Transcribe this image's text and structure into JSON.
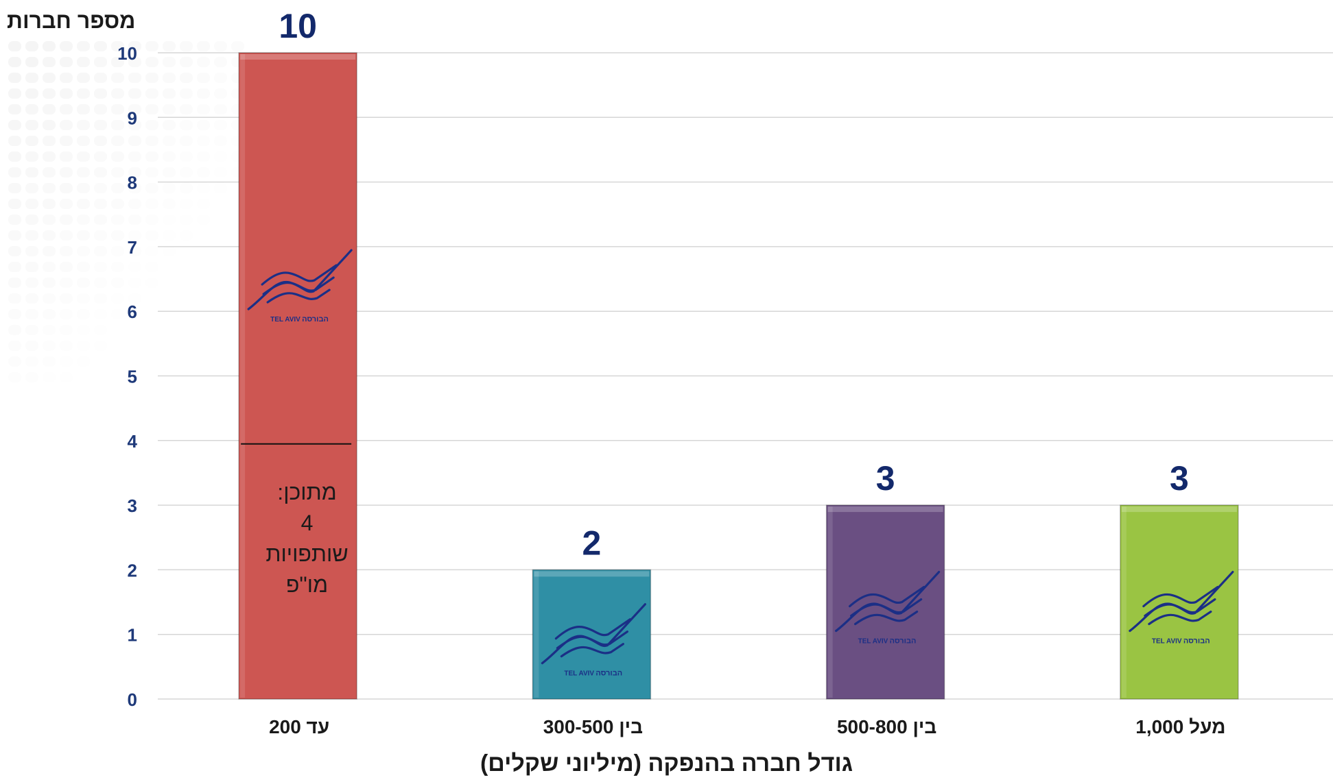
{
  "chart_data": {
    "type": "bar",
    "ylabel": "מספר חברות",
    "xlabel": "גודל חברה בהנפקה (מיליוני שקלים)",
    "categories": [
      "עד 200",
      "בין 300-500",
      "בין 500-800",
      "מעל 1,000"
    ],
    "values": [
      10,
      2,
      3,
      3
    ],
    "data_labels": [
      "10",
      "2",
      "3",
      "3"
    ],
    "ylim": [
      0,
      10
    ],
    "yticks": [
      0,
      1,
      2,
      3,
      4,
      5,
      6,
      7,
      8,
      9,
      10
    ],
    "ytick_labels": [
      "0",
      "1",
      "2",
      "3",
      "4",
      "5",
      "6",
      "7",
      "8",
      "9",
      "10"
    ],
    "grid": true,
    "legend": "none",
    "bar_colors": [
      "#cd5652",
      "#2f8fa5",
      "#6a4f82",
      "#9ac443"
    ],
    "label_color": "#13296b",
    "tick_label_color": "#1f3a7a",
    "subset_marker": {
      "category_index": 0,
      "value": 4,
      "lines": [
        "מתוכן:",
        "4",
        "שותפויות",
        "מו\"פ"
      ]
    },
    "logo": {
      "icon": "tel-aviv-stock-exchange-logo",
      "text_latin": "TEL AVIV",
      "text_hebrew": "הבורסה"
    }
  }
}
